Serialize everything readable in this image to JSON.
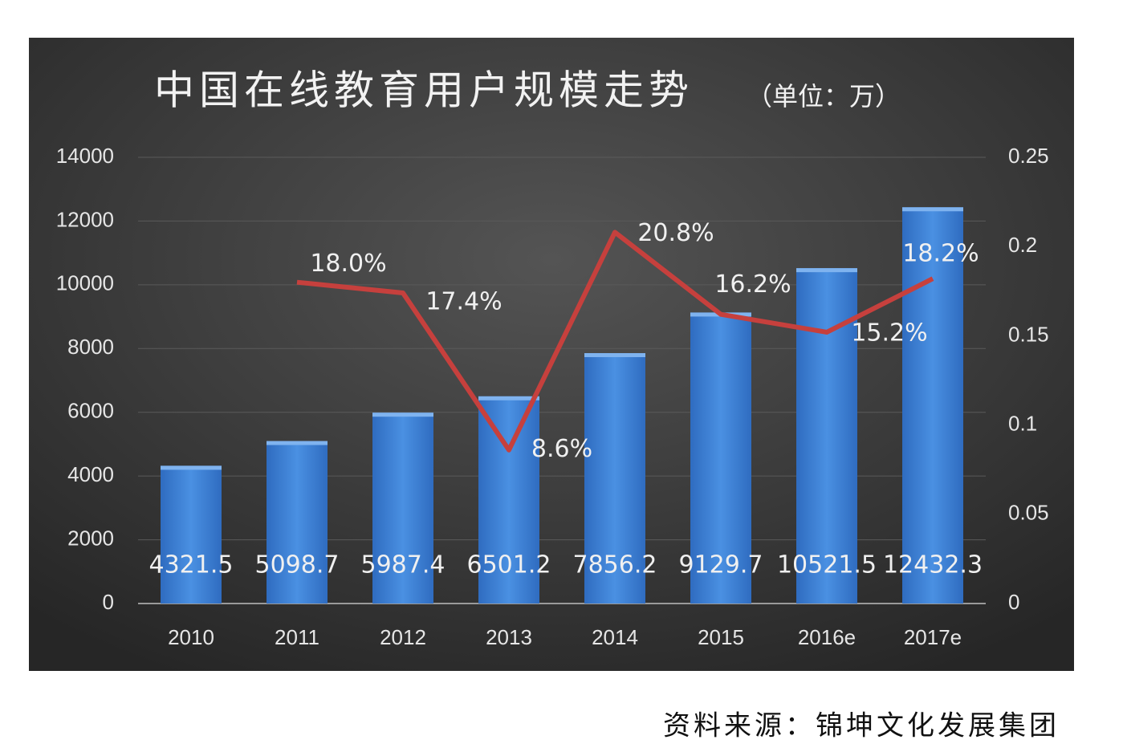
{
  "chart_data": {
    "type": "bar",
    "title": "中国在线教育用户规模走势",
    "subtitle": "（单位：万）",
    "source": "资料来源：锦坤文化发展集团",
    "categories": [
      "2010",
      "2011",
      "2012",
      "2013",
      "2014",
      "2015",
      "2016e",
      "2017e"
    ],
    "series": [
      {
        "type": "bar",
        "color": "#3a7fd5",
        "values": [
          4321.5,
          5098.7,
          5987.4,
          6501.2,
          7856.2,
          9129.7,
          10521.5,
          12432.3
        ]
      },
      {
        "type": "line",
        "axis": "y2",
        "color": "#c6403d",
        "values": [
          null,
          0.18,
          0.174,
          0.086,
          0.208,
          0.162,
          0.152,
          0.182
        ],
        "value_labels": [
          null,
          "18.0%",
          "17.4%",
          "8.6%",
          "20.8%",
          "16.2%",
          "15.2%",
          "18.2%"
        ]
      }
    ],
    "ylim": [
      0,
      14000
    ],
    "yticks": [
      0,
      2000,
      4000,
      6000,
      8000,
      10000,
      12000,
      14000
    ],
    "y2lim": [
      0,
      0.25
    ],
    "y2ticks": [
      0,
      0.05,
      0.1,
      0.15,
      0.2,
      0.25
    ],
    "grid": true
  }
}
